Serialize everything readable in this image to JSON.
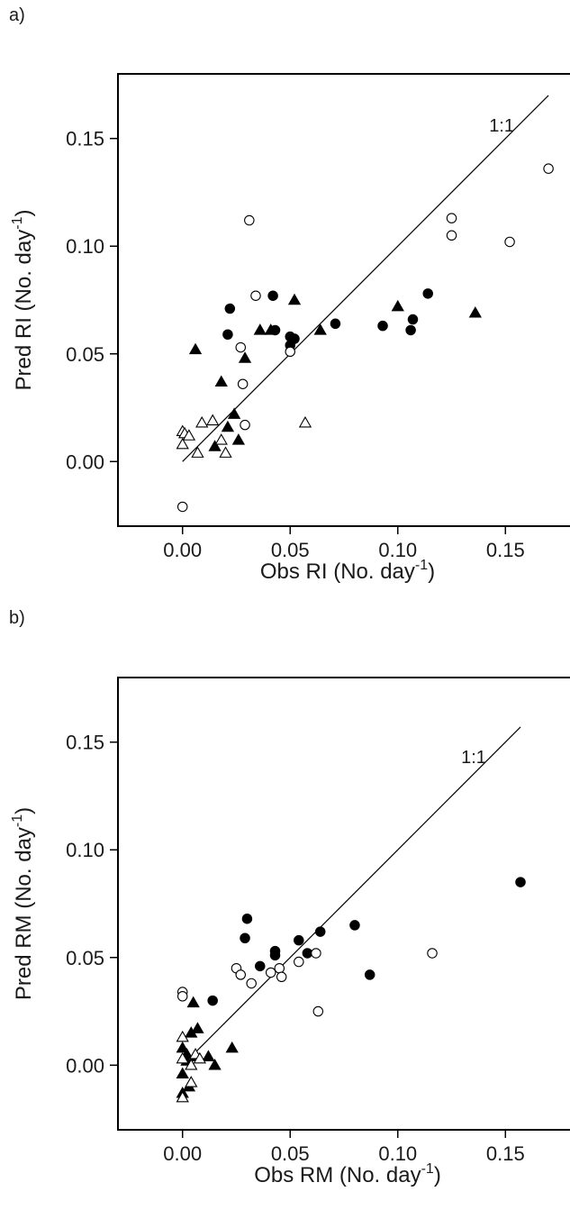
{
  "chart_data": [
    {
      "type": "scatter",
      "panel_label": "a)",
      "xlabel": "Obs RI (No. day",
      "ylabel": "Pred RI (No. day",
      "label_superscript": "-1",
      "label_close": ")",
      "xlim": [
        -0.03,
        0.18
      ],
      "ylim": [
        -0.03,
        0.18
      ],
      "xticks": [
        0.0,
        0.05,
        0.1,
        0.15
      ],
      "xtick_labels": [
        "0.00",
        "0.05",
        "0.10",
        "0.15"
      ],
      "yticks": [
        0.0,
        0.05,
        0.1,
        0.15
      ],
      "ytick_labels": [
        "0.00",
        "0.05",
        "0.10",
        "0.15"
      ],
      "reference_line": {
        "label": "1:1",
        "from": [
          0.0,
          0.0
        ],
        "to": [
          0.17,
          0.17
        ]
      },
      "series": [
        {
          "marker": "filled-circle",
          "points": [
            [
              0.021,
              0.059
            ],
            [
              0.022,
              0.071
            ],
            [
              0.042,
              0.077
            ],
            [
              0.043,
              0.061
            ],
            [
              0.05,
              0.058
            ],
            [
              0.05,
              0.054
            ],
            [
              0.052,
              0.057
            ],
            [
              0.071,
              0.064
            ],
            [
              0.093,
              0.063
            ],
            [
              0.106,
              0.061
            ],
            [
              0.107,
              0.066
            ],
            [
              0.114,
              0.078
            ]
          ]
        },
        {
          "marker": "open-circle",
          "points": [
            [
              0.0,
              -0.021
            ],
            [
              0.027,
              0.053
            ],
            [
              0.028,
              0.036
            ],
            [
              0.029,
              0.017
            ],
            [
              0.031,
              0.112
            ],
            [
              0.034,
              0.077
            ],
            [
              0.05,
              0.051
            ],
            [
              0.125,
              0.113
            ],
            [
              0.125,
              0.105
            ],
            [
              0.152,
              0.102
            ],
            [
              0.17,
              0.136
            ]
          ]
        },
        {
          "marker": "filled-triangle",
          "points": [
            [
              0.006,
              0.052
            ],
            [
              0.015,
              0.007
            ],
            [
              0.018,
              0.037
            ],
            [
              0.021,
              0.016
            ],
            [
              0.024,
              0.022
            ],
            [
              0.026,
              0.01
            ],
            [
              0.029,
              0.048
            ],
            [
              0.036,
              0.061
            ],
            [
              0.041,
              0.061
            ],
            [
              0.052,
              0.075
            ],
            [
              0.064,
              0.061
            ],
            [
              0.1,
              0.072
            ],
            [
              0.136,
              0.069
            ]
          ]
        },
        {
          "marker": "open-triangle",
          "points": [
            [
              0.0,
              0.014
            ],
            [
              0.0,
              0.008
            ],
            [
              0.001,
              0.013
            ],
            [
              0.003,
              0.012
            ],
            [
              0.007,
              0.004
            ],
            [
              0.009,
              0.018
            ],
            [
              0.014,
              0.019
            ],
            [
              0.018,
              0.01
            ],
            [
              0.02,
              0.004
            ],
            [
              0.057,
              0.018
            ]
          ]
        }
      ]
    },
    {
      "type": "scatter",
      "panel_label": "b)",
      "xlabel": "Obs RM (No. day",
      "ylabel": "Pred RM (No. day",
      "label_superscript": "-1",
      "label_close": ")",
      "xlim": [
        -0.03,
        0.18
      ],
      "ylim": [
        -0.03,
        0.18
      ],
      "xticks": [
        0.0,
        0.05,
        0.1,
        0.15
      ],
      "xtick_labels": [
        "0.00",
        "0.05",
        "0.10",
        "0.15"
      ],
      "yticks": [
        0.0,
        0.05,
        0.1,
        0.15
      ],
      "ytick_labels": [
        "0.00",
        "0.05",
        "0.10",
        "0.15"
      ],
      "reference_line": {
        "label": "1:1",
        "from": [
          0.0,
          0.0
        ],
        "to": [
          0.157,
          0.157
        ]
      },
      "series": [
        {
          "marker": "filled-circle",
          "points": [
            [
              0.014,
              0.03
            ],
            [
              0.029,
              0.059
            ],
            [
              0.03,
              0.068
            ],
            [
              0.036,
              0.046
            ],
            [
              0.043,
              0.053
            ],
            [
              0.043,
              0.051
            ],
            [
              0.054,
              0.058
            ],
            [
              0.058,
              0.052
            ],
            [
              0.064,
              0.062
            ],
            [
              0.08,
              0.065
            ],
            [
              0.087,
              0.042
            ],
            [
              0.157,
              0.085
            ]
          ]
        },
        {
          "marker": "open-circle",
          "points": [
            [
              0.0,
              0.034
            ],
            [
              0.0,
              0.032
            ],
            [
              0.025,
              0.045
            ],
            [
              0.027,
              0.042
            ],
            [
              0.032,
              0.038
            ],
            [
              0.041,
              0.043
            ],
            [
              0.045,
              0.045
            ],
            [
              0.046,
              0.041
            ],
            [
              0.054,
              0.048
            ],
            [
              0.062,
              0.052
            ],
            [
              0.063,
              0.025
            ],
            [
              0.116,
              0.052
            ]
          ]
        },
        {
          "marker": "filled-triangle",
          "points": [
            [
              0.0,
              0.008
            ],
            [
              0.0,
              -0.004
            ],
            [
              0.0,
              -0.013
            ],
            [
              0.002,
              0.005
            ],
            [
              0.003,
              -0.01
            ],
            [
              0.004,
              0.015
            ],
            [
              0.005,
              0.029
            ],
            [
              0.006,
              0.004
            ],
            [
              0.007,
              0.017
            ],
            [
              0.012,
              0.004
            ],
            [
              0.015,
              0.0
            ],
            [
              0.023,
              0.008
            ],
            [
              0.002,
              0.002
            ]
          ]
        },
        {
          "marker": "open-triangle",
          "points": [
            [
              0.0,
              0.013
            ],
            [
              0.0,
              0.003
            ],
            [
              0.0,
              -0.015
            ],
            [
              0.004,
              -0.008
            ],
            [
              0.004,
              0.0
            ],
            [
              0.006,
              0.005
            ],
            [
              0.008,
              0.003
            ]
          ]
        }
      ]
    }
  ]
}
